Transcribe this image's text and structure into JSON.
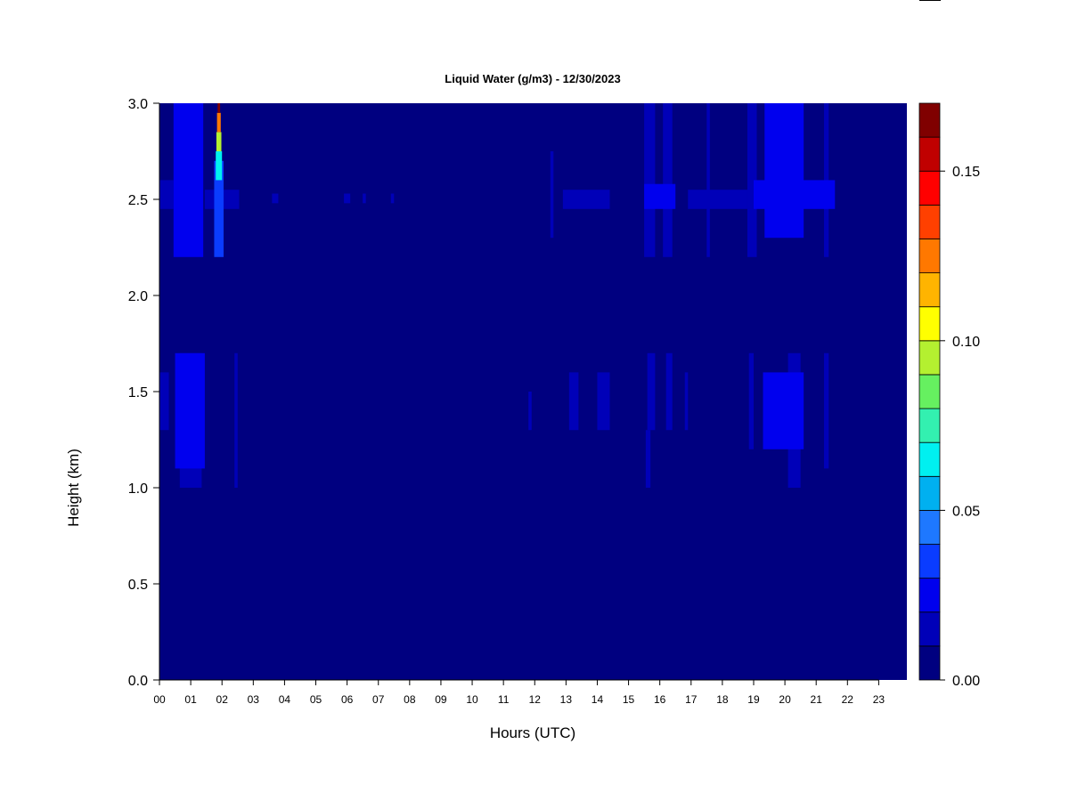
{
  "chart_data": {
    "type": "heatmap",
    "title": "Liquid Water (g/m3) - 12/30/2023",
    "xlabel": "Hours (UTC)",
    "ylabel": "Height (km)",
    "xlim": [
      0,
      23.9
    ],
    "ylim": [
      0,
      3
    ],
    "x_ticks": [
      "00",
      "01",
      "02",
      "03",
      "04",
      "05",
      "06",
      "07",
      "08",
      "09",
      "10",
      "11",
      "12",
      "13",
      "14",
      "15",
      "16",
      "17",
      "18",
      "19",
      "20",
      "21",
      "22",
      "23"
    ],
    "y_ticks": [
      "0.0",
      "0.5",
      "1.0",
      "1.5",
      "2.0",
      "2.5",
      "3.0"
    ],
    "colorbar": {
      "range": [
        0,
        0.17
      ],
      "step": 0.01,
      "ticks": [
        "0.00",
        "0.05",
        "0.10",
        "0.15"
      ],
      "tick_values": [
        0,
        0.05,
        0.1,
        0.15
      ],
      "colors": [
        "#000080",
        "#0000b8",
        "#0000ee",
        "#0a3cff",
        "#1e78ff",
        "#00b0f0",
        "#00f0f0",
        "#33f0b0",
        "#66f060",
        "#b4f030",
        "#ffff00",
        "#ffb400",
        "#ff7800",
        "#ff4000",
        "#ff0000",
        "#c00000",
        "#800000"
      ]
    },
    "background_value": 0.004,
    "cloud_regions": [
      {
        "x": [
          0.0,
          0.45
        ],
        "y": [
          2.45,
          2.6
        ],
        "value": 0.015
      },
      {
        "x": [
          0.0,
          0.3
        ],
        "y": [
          1.3,
          1.6
        ],
        "value": 0.015
      },
      {
        "x": [
          0.45,
          1.4
        ],
        "y": [
          2.2,
          3.0
        ],
        "value": 0.02
      },
      {
        "x": [
          0.5,
          1.45
        ],
        "y": [
          1.1,
          1.7
        ],
        "value": 0.02
      },
      {
        "x": [
          0.65,
          1.35
        ],
        "y": [
          1.0,
          1.7
        ],
        "value": 0.015
      },
      {
        "x": [
          1.45,
          2.55
        ],
        "y": [
          2.45,
          2.55
        ],
        "value": 0.015
      },
      {
        "x": [
          1.75,
          2.05
        ],
        "y": [
          2.2,
          2.7
        ],
        "value": 0.03
      },
      {
        "x": [
          1.8,
          2.0
        ],
        "y": [
          2.6,
          2.75
        ],
        "value": 0.06
      },
      {
        "x": [
          1.82,
          1.98
        ],
        "y": [
          2.75,
          2.85
        ],
        "value": 0.09
      },
      {
        "x": [
          1.84,
          1.96
        ],
        "y": [
          2.85,
          2.95
        ],
        "value": 0.12
      },
      {
        "x": [
          1.86,
          1.94
        ],
        "y": [
          2.95,
          3.0
        ],
        "value": 0.16
      },
      {
        "x": [
          2.4,
          2.5
        ],
        "y": [
          1.0,
          1.7
        ],
        "value": 0.012
      },
      {
        "x": [
          3.6,
          3.8
        ],
        "y": [
          2.48,
          2.53
        ],
        "value": 0.012
      },
      {
        "x": [
          5.9,
          6.1
        ],
        "y": [
          2.48,
          2.53
        ],
        "value": 0.012
      },
      {
        "x": [
          6.5,
          6.6
        ],
        "y": [
          2.48,
          2.53
        ],
        "value": 0.012
      },
      {
        "x": [
          7.4,
          7.5
        ],
        "y": [
          2.48,
          2.53
        ],
        "value": 0.012
      },
      {
        "x": [
          11.8,
          11.9
        ],
        "y": [
          1.3,
          1.5
        ],
        "value": 0.012
      },
      {
        "x": [
          12.5,
          12.6
        ],
        "y": [
          2.3,
          2.75
        ],
        "value": 0.012
      },
      {
        "x": [
          12.9,
          14.4
        ],
        "y": [
          2.45,
          2.55
        ],
        "value": 0.015
      },
      {
        "x": [
          13.1,
          13.4
        ],
        "y": [
          1.3,
          1.6
        ],
        "value": 0.013
      },
      {
        "x": [
          14.0,
          14.4
        ],
        "y": [
          1.3,
          1.6
        ],
        "value": 0.015
      },
      {
        "x": [
          15.5,
          15.85
        ],
        "y": [
          2.2,
          3.0
        ],
        "value": 0.018
      },
      {
        "x": [
          15.6,
          15.85
        ],
        "y": [
          1.3,
          1.7
        ],
        "value": 0.018
      },
      {
        "x": [
          15.55,
          15.7
        ],
        "y": [
          1.0,
          1.3
        ],
        "value": 0.012
      },
      {
        "x": [
          15.5,
          16.5
        ],
        "y": [
          2.45,
          2.58
        ],
        "value": 0.02
      },
      {
        "x": [
          16.1,
          16.4
        ],
        "y": [
          2.2,
          3.0
        ],
        "value": 0.015
      },
      {
        "x": [
          16.2,
          16.4
        ],
        "y": [
          1.3,
          1.7
        ],
        "value": 0.012
      },
      {
        "x": [
          16.9,
          18.8
        ],
        "y": [
          2.45,
          2.55
        ],
        "value": 0.018
      },
      {
        "x": [
          17.5,
          17.6
        ],
        "y": [
          2.2,
          3.0
        ],
        "value": 0.012
      },
      {
        "x": [
          16.8,
          16.9
        ],
        "y": [
          1.3,
          1.6
        ],
        "value": 0.012
      },
      {
        "x": [
          18.8,
          19.1
        ],
        "y": [
          2.2,
          3.0
        ],
        "value": 0.018
      },
      {
        "x": [
          18.85,
          19.0
        ],
        "y": [
          1.2,
          1.7
        ],
        "value": 0.012
      },
      {
        "x": [
          19.0,
          21.6
        ],
        "y": [
          2.45,
          2.6
        ],
        "value": 0.02
      },
      {
        "x": [
          19.35,
          20.6
        ],
        "y": [
          2.3,
          3.0
        ],
        "value": 0.02
      },
      {
        "x": [
          19.3,
          20.6
        ],
        "y": [
          1.2,
          1.6
        ],
        "value": 0.02
      },
      {
        "x": [
          20.1,
          20.5
        ],
        "y": [
          1.0,
          1.7
        ],
        "value": 0.018
      },
      {
        "x": [
          21.25,
          21.4
        ],
        "y": [
          2.2,
          3.0
        ],
        "value": 0.012
      },
      {
        "x": [
          21.25,
          21.4
        ],
        "y": [
          1.1,
          1.7
        ],
        "value": 0.012
      }
    ]
  }
}
